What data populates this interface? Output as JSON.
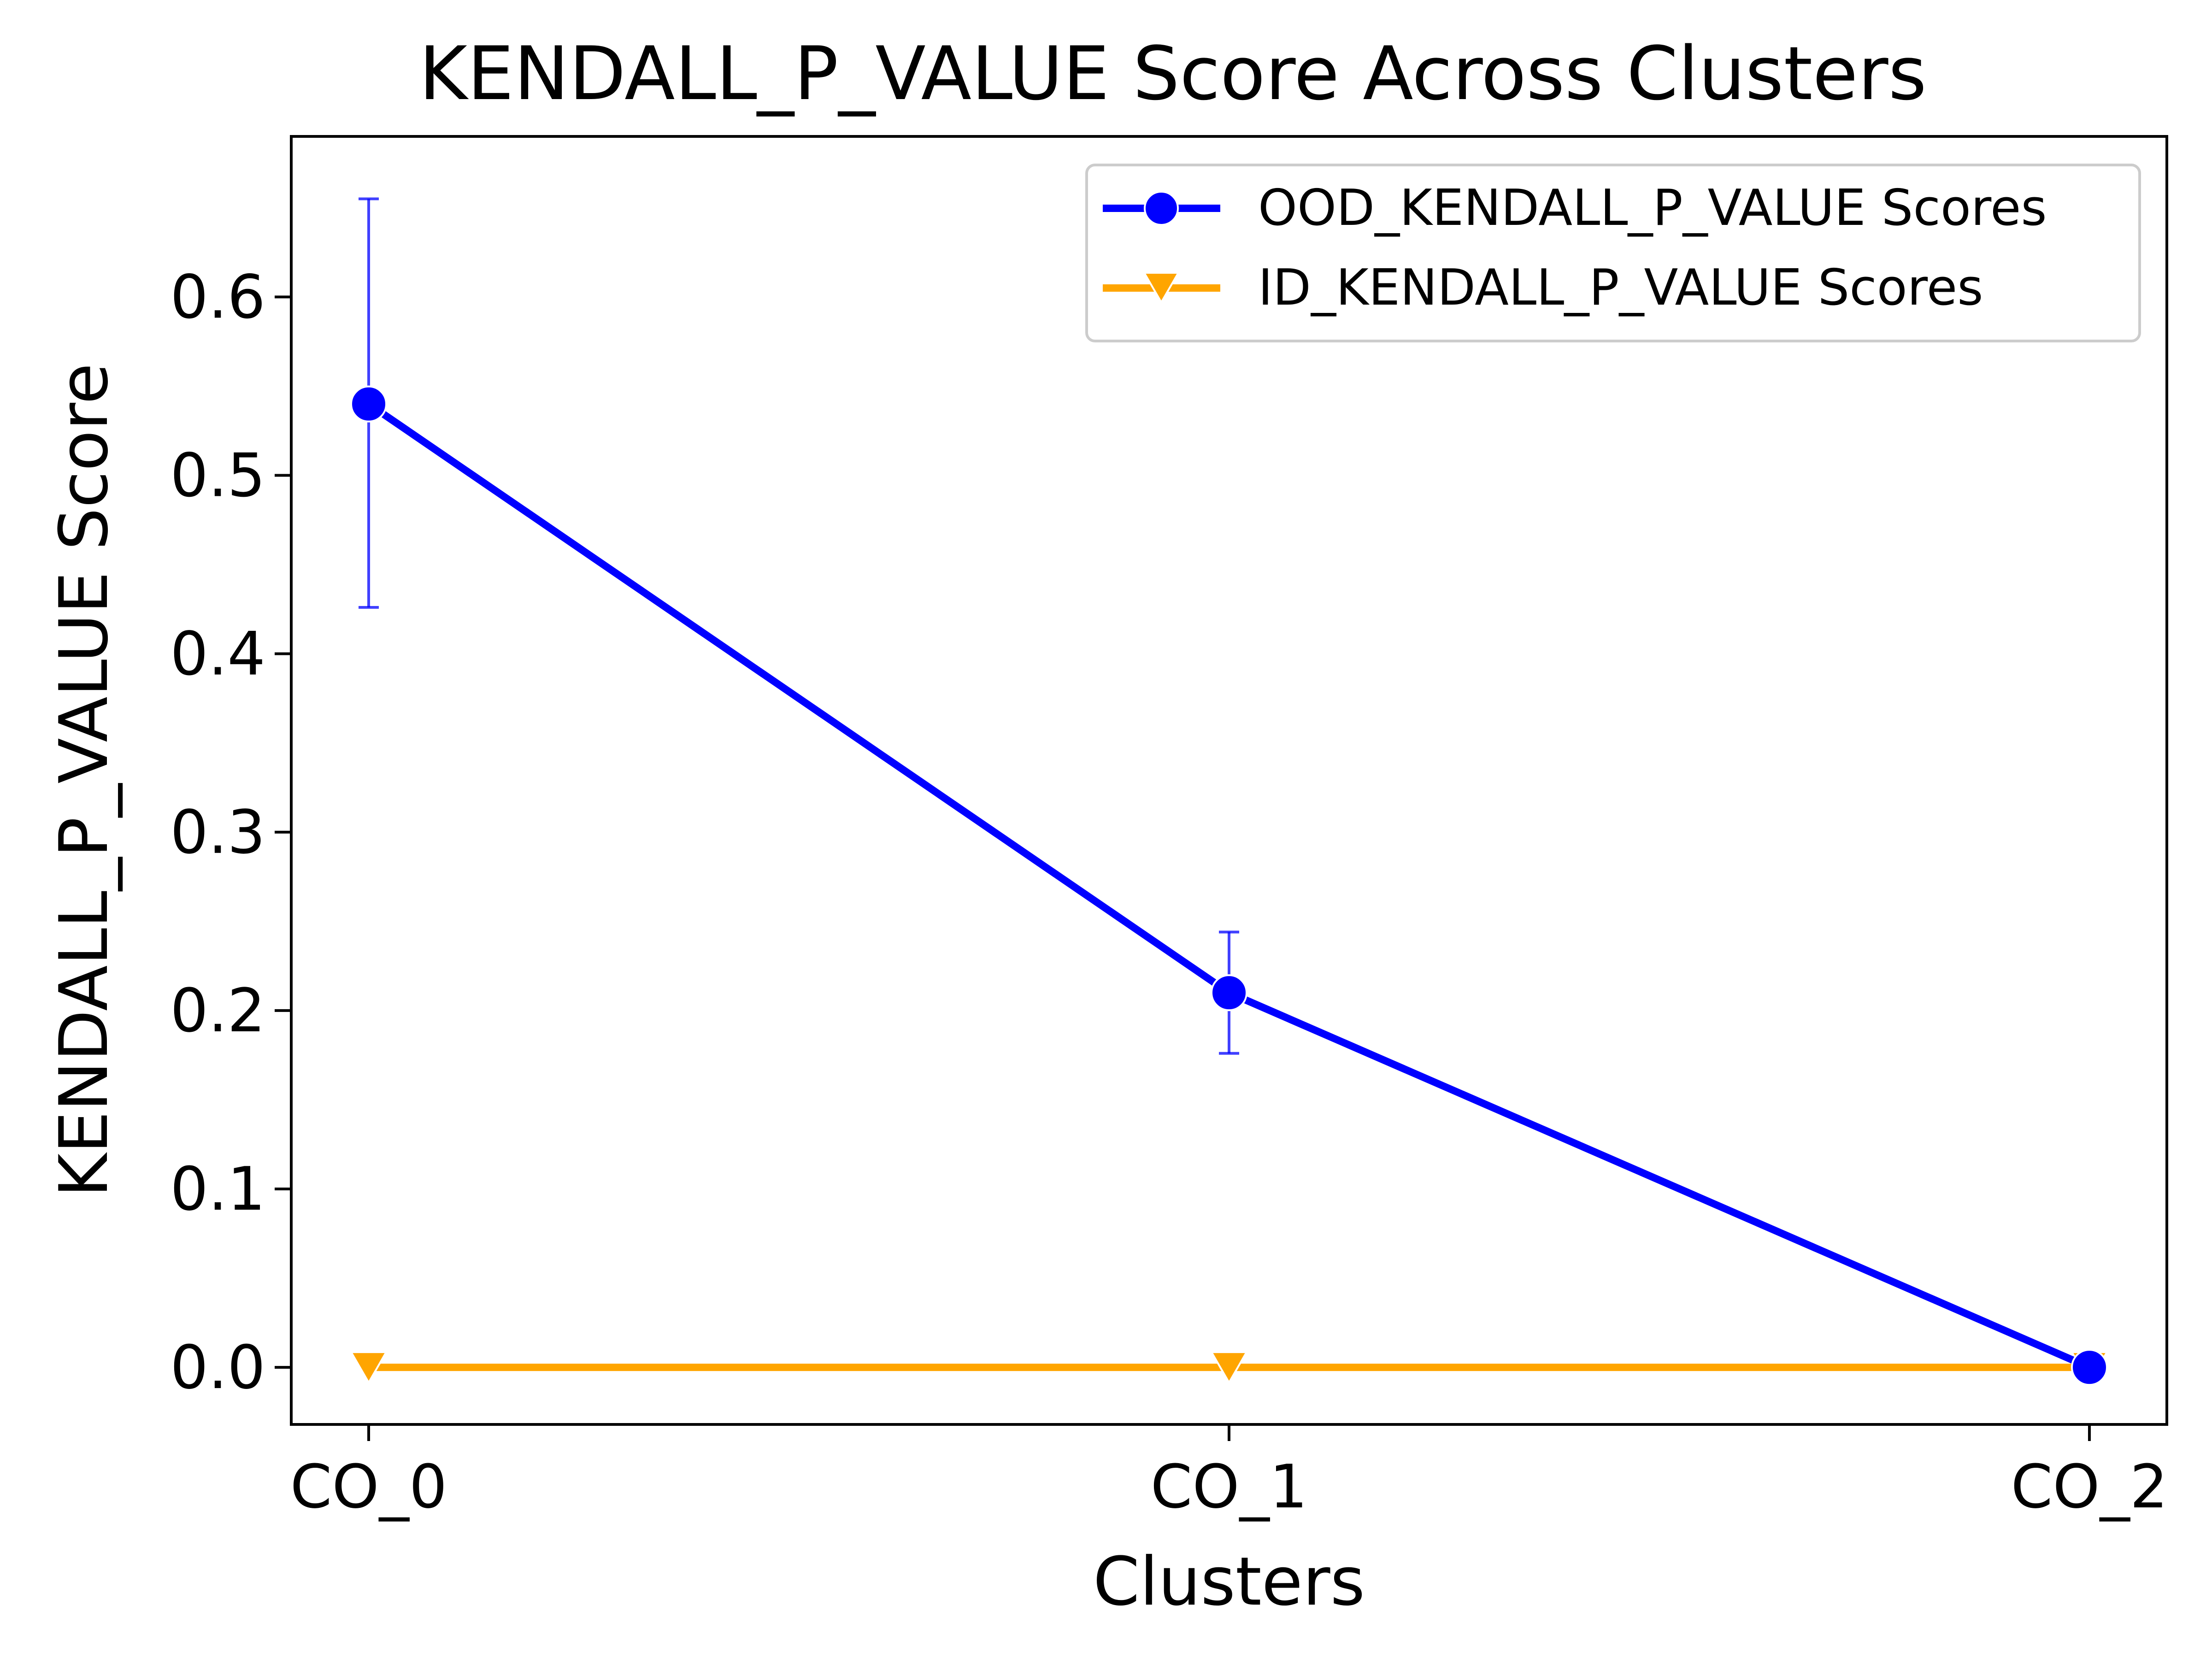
{
  "chart_data": {
    "type": "line",
    "title": "KENDALL_P_VALUE Score Across Clusters",
    "xlabel": "Clusters",
    "ylabel": "KENDALL_P_VALUE Score",
    "categories": [
      "CO_0",
      "CO_1",
      "CO_2"
    ],
    "ylim": [
      -0.032,
      0.69
    ],
    "yticks": [
      0.0,
      0.1,
      0.2,
      0.3,
      0.4,
      0.5,
      0.6
    ],
    "ytick_labels": [
      "0.0",
      "0.1",
      "0.2",
      "0.3",
      "0.4",
      "0.5",
      "0.6"
    ],
    "grid": false,
    "legend_position": "top-right",
    "series": [
      {
        "name": "OOD_KENDALL_P_VALUE Scores",
        "color": "#0000ff",
        "marker": "circle",
        "values": [
          0.54,
          0.21,
          0.0
        ],
        "error_low": [
          0.426,
          0.176,
          0.0
        ],
        "error_high": [
          0.655,
          0.244,
          0.0
        ]
      },
      {
        "name": "ID_KENDALL_P_VALUE Scores",
        "color": "#ffa500",
        "marker": "triangle-down",
        "values": [
          0.0,
          0.0,
          0.0
        ]
      }
    ]
  }
}
